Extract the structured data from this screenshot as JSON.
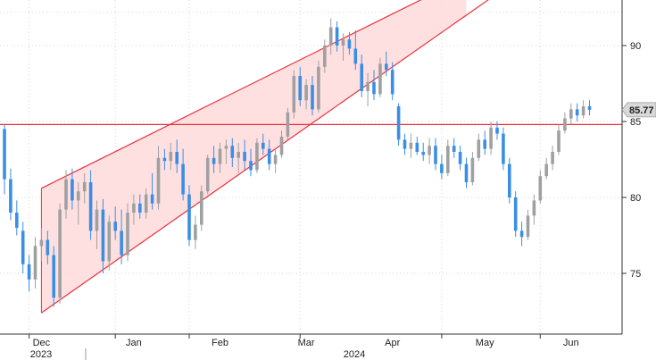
{
  "chart_data": {
    "type": "candlestick",
    "title": "",
    "xlabel": "",
    "ylabel": "",
    "ylim": [
      71,
      93
    ],
    "y_ticks": [
      75,
      80,
      85,
      90
    ],
    "x_ticks": [
      "Dec",
      "Jan",
      "Feb",
      "Mar",
      "Apr",
      "May",
      "Jun"
    ],
    "year_labels": [
      "2023",
      "2024"
    ],
    "last_price_label": "85.77",
    "horizontal_level": 84.8,
    "channel": {
      "upper": [
        [
          0,
          80.6
        ],
        [
          69,
          94.5
        ]
      ],
      "lower": [
        [
          0,
          72.4
        ],
        [
          69,
          92.0
        ]
      ]
    },
    "colors": {
      "up": "#a0a0a0",
      "down": "#3a8ee6",
      "channel_fill": "#ffdada",
      "channel_line": "#e8323c",
      "level_line": "#e8323c"
    },
    "grid": true,
    "y_axis_position": "right",
    "candles": [
      [
        84.5,
        84.8,
        80.2,
        81.2
      ],
      [
        81.2,
        81.9,
        78.5,
        79.0
      ],
      [
        79.0,
        79.8,
        77.5,
        78.0
      ],
      [
        77.8,
        78.4,
        75.0,
        75.6
      ],
      [
        75.6,
        76.2,
        73.8,
        74.6
      ],
      [
        74.6,
        77.4,
        74.0,
        76.8
      ],
      [
        76.8,
        78.0,
        75.8,
        77.2
      ],
      [
        77.2,
        77.8,
        75.6,
        76.2
      ],
      [
        76.2,
        76.8,
        72.8,
        73.4
      ],
      [
        73.4,
        79.6,
        73.0,
        79.2
      ],
      [
        79.2,
        81.8,
        78.6,
        81.2
      ],
      [
        81.2,
        81.9,
        79.2,
        79.8
      ],
      [
        79.8,
        81.0,
        78.2,
        80.4
      ],
      [
        80.4,
        81.6,
        79.6,
        81.0
      ],
      [
        81.0,
        81.8,
        77.2,
        77.8
      ],
      [
        77.8,
        79.8,
        76.6,
        79.2
      ],
      [
        79.2,
        79.9,
        75.0,
        75.8
      ],
      [
        75.8,
        78.8,
        75.2,
        78.4
      ],
      [
        78.4,
        79.4,
        77.2,
        77.8
      ],
      [
        77.8,
        79.2,
        75.6,
        76.2
      ],
      [
        76.2,
        79.6,
        75.8,
        79.0
      ],
      [
        79.0,
        80.2,
        78.2,
        79.6
      ],
      [
        79.6,
        80.2,
        78.6,
        79.0
      ],
      [
        79.0,
        80.6,
        78.6,
        80.2
      ],
      [
        80.2,
        81.6,
        79.2,
        79.6
      ],
      [
        79.6,
        83.4,
        79.2,
        82.6
      ],
      [
        82.6,
        83.2,
        81.8,
        82.4
      ],
      [
        82.4,
        83.6,
        81.8,
        83.0
      ],
      [
        83.0,
        83.8,
        81.6,
        82.2
      ],
      [
        82.2,
        83.2,
        79.8,
        80.2
      ],
      [
        80.2,
        80.8,
        76.8,
        77.2
      ],
      [
        77.2,
        78.8,
        76.6,
        78.2
      ],
      [
        78.2,
        80.8,
        77.8,
        80.4
      ],
      [
        80.4,
        82.8,
        80.2,
        82.6
      ],
      [
        82.6,
        83.4,
        81.6,
        82.2
      ],
      [
        82.2,
        83.6,
        81.6,
        83.2
      ],
      [
        83.2,
        83.8,
        82.2,
        83.4
      ],
      [
        83.4,
        83.9,
        82.0,
        82.6
      ],
      [
        82.6,
        83.6,
        81.6,
        83.0
      ],
      [
        83.0,
        83.8,
        81.8,
        82.4
      ],
      [
        82.4,
        83.2,
        81.4,
        81.8
      ],
      [
        81.8,
        83.9,
        81.6,
        83.6
      ],
      [
        83.6,
        84.2,
        82.8,
        83.2
      ],
      [
        83.2,
        83.8,
        81.8,
        82.2
      ],
      [
        82.2,
        83.2,
        81.6,
        82.8
      ],
      [
        82.8,
        84.4,
        82.6,
        84.0
      ],
      [
        84.0,
        85.9,
        83.8,
        85.6
      ],
      [
        85.6,
        88.4,
        85.2,
        88.0
      ],
      [
        88.0,
        88.6,
        86.0,
        86.4
      ],
      [
        86.4,
        87.8,
        85.8,
        87.4
      ],
      [
        87.4,
        88.0,
        85.4,
        85.8
      ],
      [
        85.8,
        89.0,
        85.6,
        88.6
      ],
      [
        88.6,
        90.4,
        88.2,
        90.0
      ],
      [
        90.0,
        91.8,
        89.4,
        91.2
      ],
      [
        91.2,
        91.6,
        89.6,
        90.0
      ],
      [
        90.0,
        90.8,
        89.0,
        90.4
      ],
      [
        90.4,
        90.9,
        89.4,
        89.8
      ],
      [
        89.8,
        91.0,
        88.4,
        88.8
      ],
      [
        88.8,
        89.4,
        86.6,
        87.0
      ],
      [
        87.0,
        88.2,
        86.0,
        87.6
      ],
      [
        87.6,
        88.4,
        86.4,
        86.8
      ],
      [
        86.8,
        89.2,
        86.6,
        88.8
      ],
      [
        88.8,
        89.6,
        88.0,
        88.4
      ],
      [
        88.4,
        88.9,
        86.4,
        86.8
      ],
      [
        86.0,
        86.2,
        83.4,
        83.8
      ],
      [
        83.8,
        84.2,
        82.8,
        83.2
      ],
      [
        83.2,
        84.2,
        82.6,
        83.6
      ],
      [
        83.6,
        84.0,
        82.8,
        83.0
      ],
      [
        83.0,
        83.6,
        82.4,
        82.8
      ],
      [
        82.8,
        83.9,
        82.2,
        83.4
      ],
      [
        83.4,
        83.9,
        81.8,
        82.2
      ],
      [
        82.2,
        82.8,
        81.2,
        81.6
      ],
      [
        81.6,
        83.8,
        81.4,
        83.4
      ],
      [
        83.4,
        83.9,
        82.6,
        83.0
      ],
      [
        83.0,
        83.4,
        81.8,
        82.2
      ],
      [
        82.2,
        82.6,
        80.6,
        81.0
      ],
      [
        81.0,
        83.0,
        80.8,
        82.6
      ],
      [
        82.6,
        84.2,
        82.4,
        83.8
      ],
      [
        83.8,
        84.4,
        82.8,
        83.2
      ],
      [
        83.2,
        85.0,
        82.8,
        84.6
      ],
      [
        84.6,
        85.0,
        83.8,
        84.2
      ],
      [
        84.2,
        84.6,
        81.8,
        82.2
      ],
      [
        82.2,
        82.6,
        79.6,
        80.0
      ],
      [
        80.0,
        80.4,
        77.4,
        77.8
      ],
      [
        77.8,
        78.4,
        76.8,
        77.4
      ],
      [
        77.4,
        79.2,
        77.2,
        78.8
      ],
      [
        78.8,
        80.2,
        78.2,
        79.8
      ],
      [
        79.8,
        81.8,
        79.6,
        81.4
      ],
      [
        81.4,
        82.6,
        81.2,
        82.2
      ],
      [
        82.2,
        83.4,
        81.8,
        83.0
      ],
      [
        83.0,
        84.8,
        82.8,
        84.4
      ],
      [
        84.4,
        85.6,
        84.2,
        85.2
      ],
      [
        85.2,
        86.2,
        84.8,
        85.8
      ],
      [
        85.8,
        86.2,
        85.0,
        85.4
      ],
      [
        85.4,
        86.4,
        85.2,
        86.0
      ],
      [
        86.0,
        86.4,
        85.4,
        85.77
      ]
    ]
  }
}
